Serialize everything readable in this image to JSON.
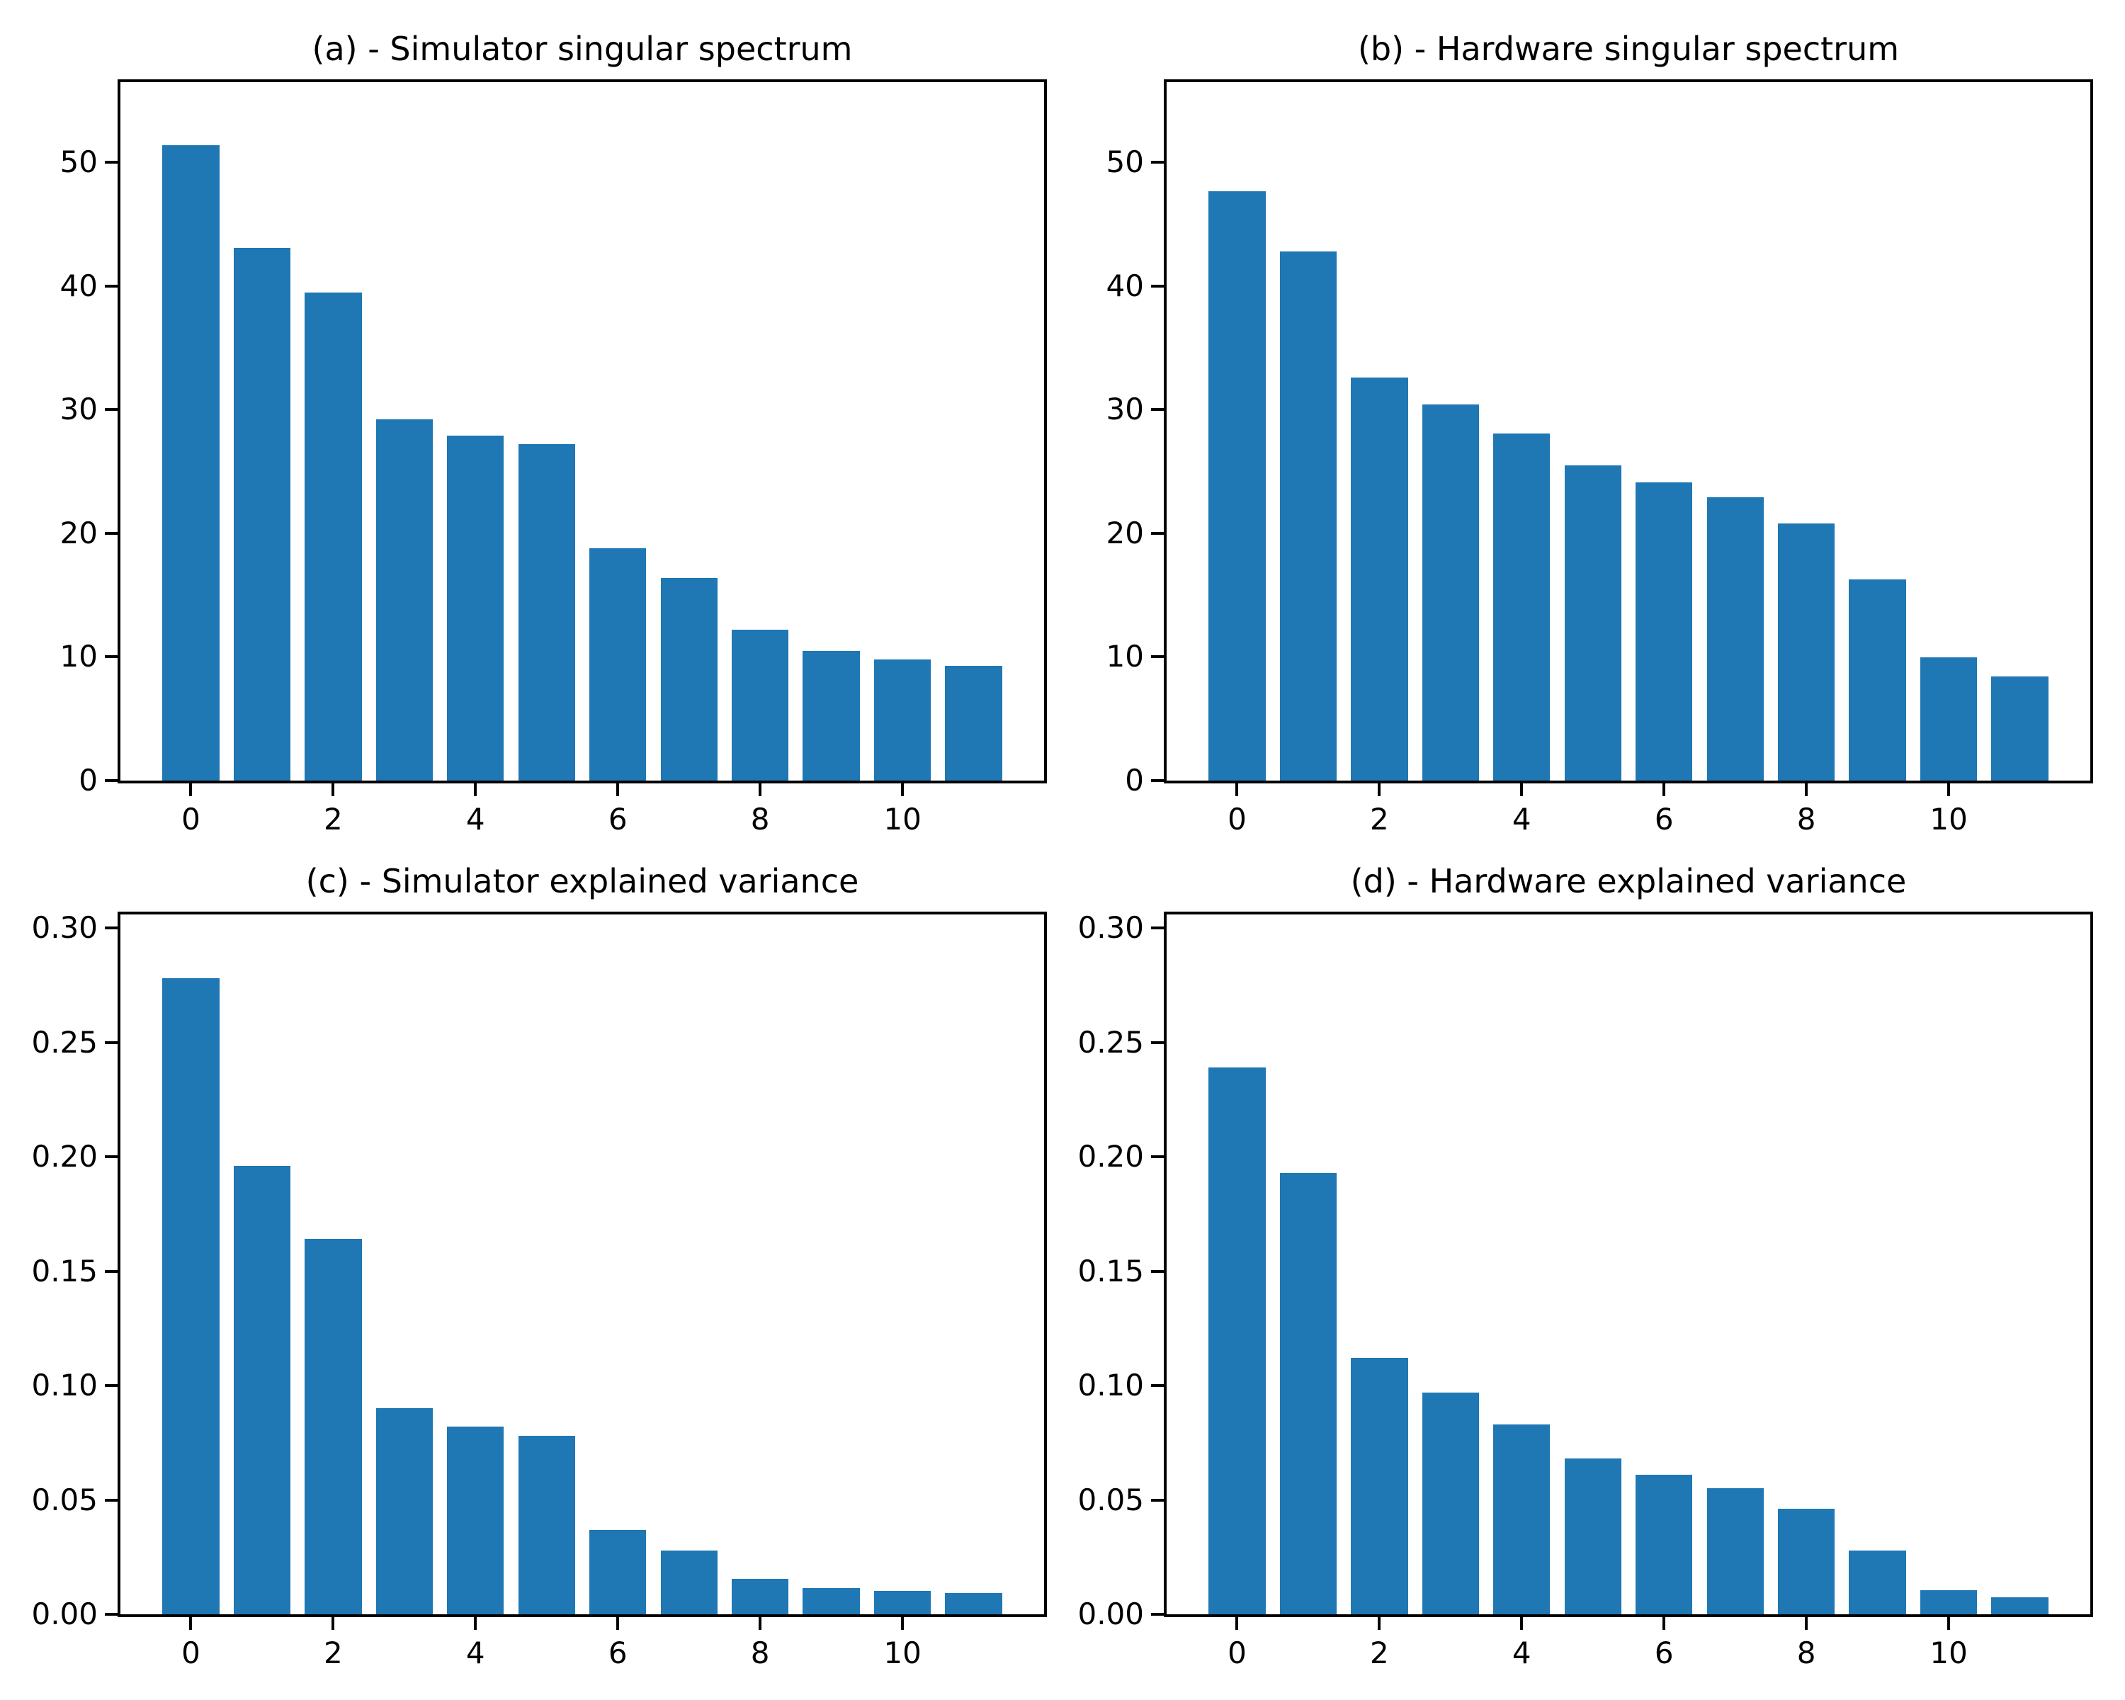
{
  "figure": {
    "background": "#ffffff",
    "bar_color": "#1f77b4",
    "spine_color": "#000000",
    "text_color": "#000000"
  },
  "chart_data": [
    {
      "id": "a",
      "type": "bar",
      "title": "(a) - Simulator singular spectrum",
      "x": [
        0,
        1,
        2,
        3,
        4,
        5,
        6,
        7,
        8,
        9,
        10,
        11
      ],
      "values": [
        51.4,
        43.1,
        39.5,
        29.2,
        27.9,
        27.2,
        18.8,
        16.4,
        12.2,
        10.5,
        9.8,
        9.3
      ],
      "bar_width": 0.8,
      "xlim": [
        -0.99,
        11.99
      ],
      "ylim": [
        0,
        56.5
      ],
      "yticks": [
        0,
        10,
        20,
        30,
        40,
        50
      ],
      "ytick_labels": [
        "0",
        "10",
        "20",
        "30",
        "40",
        "50"
      ],
      "xticks": [
        0,
        2,
        4,
        6,
        8,
        10
      ],
      "xtick_labels": [
        "0",
        "2",
        "4",
        "6",
        "8",
        "10"
      ],
      "xlabel": "",
      "ylabel": "",
      "grid": false,
      "legend": null
    },
    {
      "id": "b",
      "type": "bar",
      "title": "(b) - Hardware singular spectrum",
      "x": [
        0,
        1,
        2,
        3,
        4,
        5,
        6,
        7,
        8,
        9,
        10,
        11
      ],
      "values": [
        47.7,
        42.8,
        32.6,
        30.4,
        28.1,
        25.5,
        24.1,
        22.9,
        20.8,
        16.3,
        10.0,
        8.4
      ],
      "bar_width": 0.8,
      "xlim": [
        -0.99,
        11.99
      ],
      "ylim": [
        0,
        56.5
      ],
      "yticks": [
        0,
        10,
        20,
        30,
        40,
        50
      ],
      "ytick_labels": [
        "0",
        "10",
        "20",
        "30",
        "40",
        "50"
      ],
      "xticks": [
        0,
        2,
        4,
        6,
        8,
        10
      ],
      "xtick_labels": [
        "0",
        "2",
        "4",
        "6",
        "8",
        "10"
      ],
      "xlabel": "",
      "ylabel": "",
      "grid": false,
      "legend": null
    },
    {
      "id": "c",
      "type": "bar",
      "title": "(c) - Simulator explained variance",
      "x": [
        0,
        1,
        2,
        3,
        4,
        5,
        6,
        7,
        8,
        9,
        10,
        11
      ],
      "values": [
        0.278,
        0.196,
        0.164,
        0.09,
        0.082,
        0.078,
        0.037,
        0.028,
        0.0155,
        0.0115,
        0.0102,
        0.0092
      ],
      "bar_width": 0.8,
      "xlim": [
        -0.99,
        11.99
      ],
      "ylim": [
        0,
        0.306
      ],
      "yticks": [
        0,
        0.05,
        0.1,
        0.15,
        0.2,
        0.25,
        0.3
      ],
      "ytick_labels": [
        "0.00",
        "0.05",
        "0.10",
        "0.15",
        "0.20",
        "0.25",
        "0.30"
      ],
      "xticks": [
        0,
        2,
        4,
        6,
        8,
        10
      ],
      "xtick_labels": [
        "0",
        "2",
        "4",
        "6",
        "8",
        "10"
      ],
      "xlabel": "",
      "ylabel": "",
      "grid": false,
      "legend": null
    },
    {
      "id": "d",
      "type": "bar",
      "title": "(d) - Hardware explained variance",
      "x": [
        0,
        1,
        2,
        3,
        4,
        5,
        6,
        7,
        8,
        9,
        10,
        11
      ],
      "values": [
        0.239,
        0.193,
        0.112,
        0.097,
        0.083,
        0.068,
        0.061,
        0.055,
        0.046,
        0.028,
        0.0105,
        0.0075
      ],
      "bar_width": 0.8,
      "xlim": [
        -0.99,
        11.99
      ],
      "ylim": [
        0,
        0.306
      ],
      "yticks": [
        0,
        0.05,
        0.1,
        0.15,
        0.2,
        0.25,
        0.3
      ],
      "ytick_labels": [
        "0.00",
        "0.05",
        "0.10",
        "0.15",
        "0.20",
        "0.25",
        "0.30"
      ],
      "xticks": [
        0,
        2,
        4,
        6,
        8,
        10
      ],
      "xtick_labels": [
        "0",
        "2",
        "4",
        "6",
        "8",
        "10"
      ],
      "xlabel": "",
      "ylabel": "",
      "grid": false,
      "legend": null
    }
  ]
}
